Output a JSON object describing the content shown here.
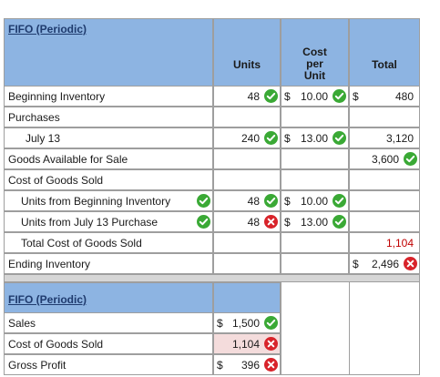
{
  "section1": {
    "title": "FIFO (Periodic)",
    "headers": {
      "units": "Units",
      "cost": "Cost\nper\nUnit",
      "total": "Total"
    },
    "rows": {
      "beginning_inventory": {
        "label": "Beginning Inventory",
        "units": "48",
        "cost_dollar": "$",
        "cost": "10.00",
        "total_dollar": "$",
        "total": "480"
      },
      "purchases": {
        "label": "Purchases"
      },
      "july13": {
        "label": "July 13",
        "units": "240",
        "cost_dollar": "$",
        "cost": "13.00",
        "total": "3,120"
      },
      "goods_available": {
        "label": "Goods Available for Sale",
        "total": "3,600"
      },
      "cogs_heading": {
        "label": "Cost of Goods Sold"
      },
      "units_beginning": {
        "label": "Units from Beginning Inventory",
        "units": "48",
        "cost_dollar": "$",
        "cost": "10.00"
      },
      "units_july13": {
        "label": "Units from July 13 Purchase",
        "units": "48",
        "cost_dollar": "$",
        "cost": "13.00"
      },
      "total_cogs": {
        "label": "Total Cost of Goods Sold",
        "total": "1,104"
      },
      "ending_inventory": {
        "label": "Ending Inventory",
        "total_dollar": "$",
        "total": "2,496"
      }
    }
  },
  "section2": {
    "title": "FIFO (Periodic)",
    "rows": {
      "sales": {
        "label": "Sales",
        "dollar": "$",
        "value": "1,500"
      },
      "cogs": {
        "label": "Cost of Goods Sold",
        "value": "1,104"
      },
      "gross_profit": {
        "label": "Gross Profit",
        "dollar": "$",
        "value": "396"
      }
    }
  },
  "colors": {
    "header_blue": "#8db4e2",
    "correct_green": "#3aa935",
    "wrong_red": "#d8232a",
    "error_pink": "#f4dcdc"
  },
  "icons": {
    "correct": "check-circle-icon",
    "incorrect": "x-circle-icon"
  }
}
